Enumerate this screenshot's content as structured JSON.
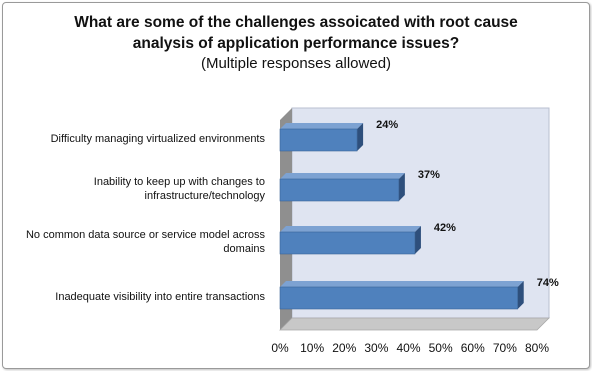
{
  "chart_data": {
    "type": "bar",
    "orientation": "horizontal",
    "title": "What are some of the challenges assoicated with root cause analysis of application performance issues?",
    "title_lines": [
      "What are some of the challenges assoicated with root cause",
      "analysis of application performance issues?"
    ],
    "subtitle": "(Multiple responses allowed)",
    "categories": [
      [
        "Difficulty managing virtualized environments"
      ],
      [
        "Inability to keep up with changes to",
        "infrastructure/technology"
      ],
      [
        "No common data source or service model across",
        "domains"
      ],
      [
        "Inadequate visibility into entire transactions"
      ]
    ],
    "values": [
      24,
      37,
      42,
      74
    ],
    "value_labels": [
      "24%",
      "37%",
      "42%",
      "74%"
    ],
    "xlim": [
      0,
      80
    ],
    "xticks": [
      "0%",
      "10%",
      "20%",
      "30%",
      "40%",
      "50%",
      "60%",
      "70%",
      "80%"
    ],
    "colors": {
      "bar_front": "#4f81bd",
      "bar_top": "#7da2d2",
      "bar_side": "#2e4f7c",
      "plot_wall": "#dfe4f1",
      "floor": "#c8c8c8",
      "side_wall": "#8f8f8f"
    },
    "grid": false,
    "legend": "none"
  }
}
